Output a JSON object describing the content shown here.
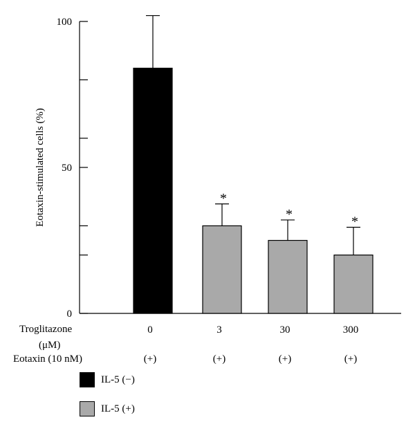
{
  "chart_data": {
    "type": "bar",
    "ylabel": "Eotaxin-stimulated cells (%)",
    "ylim": [
      0,
      100
    ],
    "yticks": [
      0,
      50,
      100
    ],
    "minor_yticks": [
      20,
      30,
      60,
      80
    ],
    "categories": [
      "0",
      "3",
      "30",
      "300"
    ],
    "values": [
      84,
      30,
      25,
      20
    ],
    "errors": [
      18,
      7.5,
      7,
      9.5
    ],
    "significant": [
      false,
      true,
      true,
      true
    ],
    "significance_marker": "*",
    "bar_colors": [
      "#000000",
      "#a9a9a9",
      "#a9a9a9",
      "#a9a9a9"
    ],
    "row_labels": {
      "troglitazone": "Troglitazone",
      "troglitazone_unit": "(μM)",
      "eotaxin": "Eotaxin (10 nM)"
    },
    "eotaxin_values": [
      "(+)",
      "(+)",
      "(+)",
      "(+)"
    ],
    "legend": [
      {
        "label": "IL-5 (−)",
        "color": "#000000"
      },
      {
        "label": "IL-5 (+)",
        "color": "#a9a9a9"
      }
    ],
    "grid": false
  }
}
